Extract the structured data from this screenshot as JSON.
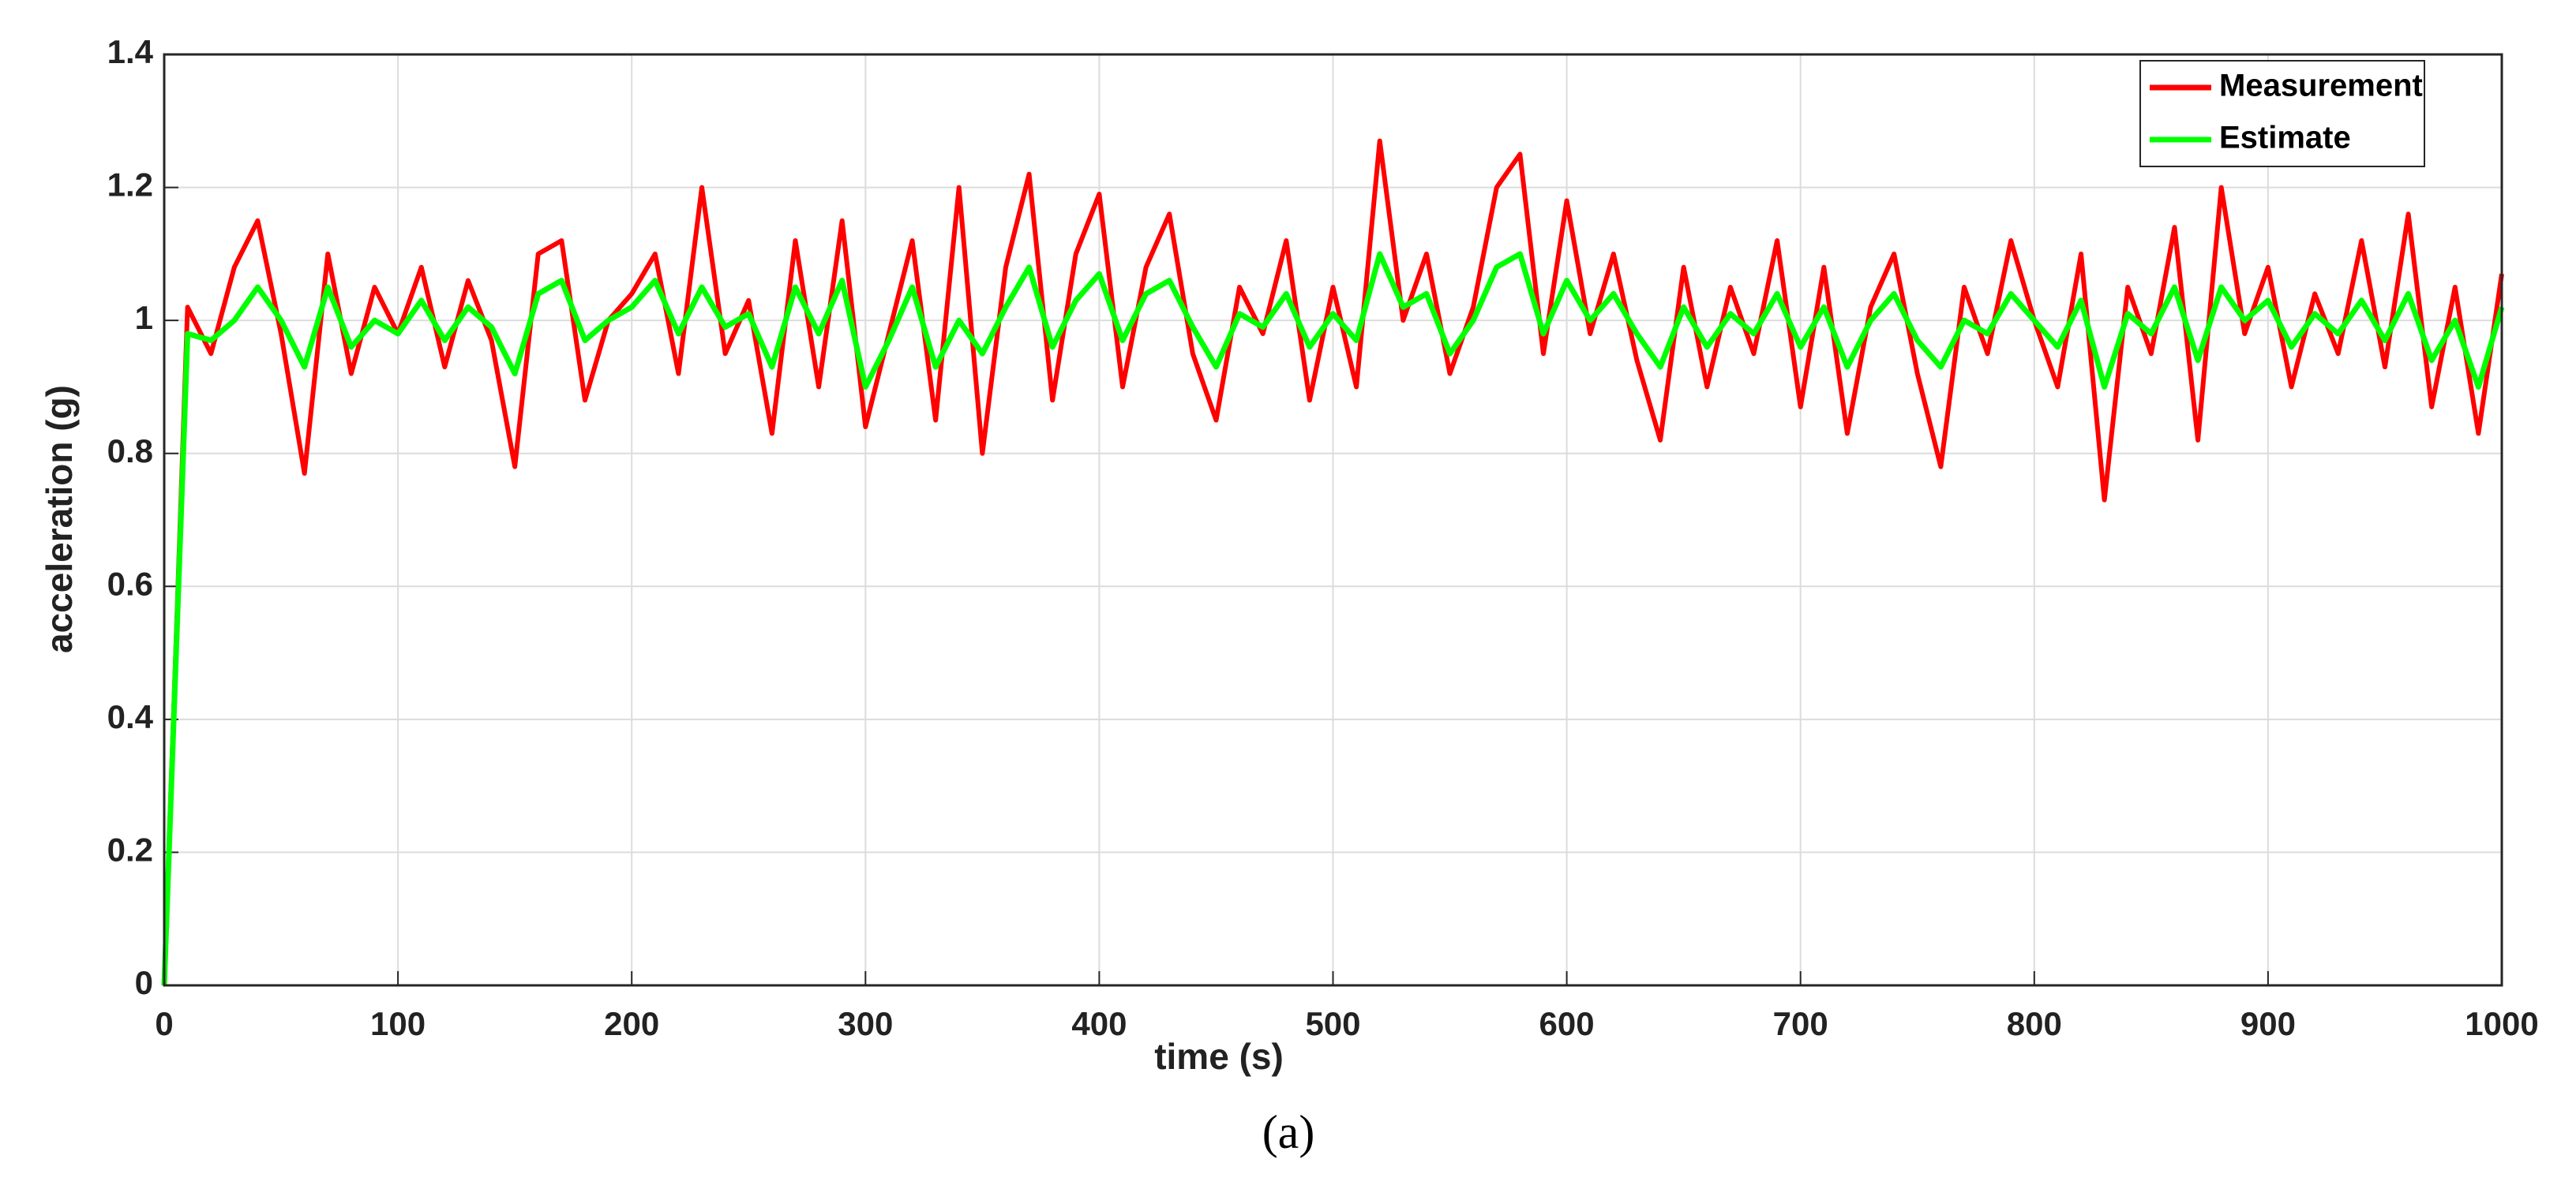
{
  "chart_data": {
    "type": "line",
    "xlabel": "time (s)",
    "ylabel": "acceleration (g)",
    "caption": "(a)",
    "x": [
      0,
      10,
      20,
      30,
      40,
      50,
      60,
      70,
      80,
      90,
      100,
      110,
      120,
      130,
      140,
      150,
      160,
      170,
      180,
      190,
      200,
      210,
      220,
      230,
      240,
      250,
      260,
      270,
      280,
      290,
      300,
      310,
      320,
      330,
      340,
      350,
      360,
      370,
      380,
      390,
      400,
      410,
      420,
      430,
      440,
      450,
      460,
      470,
      480,
      490,
      500,
      510,
      520,
      530,
      540,
      550,
      560,
      570,
      580,
      590,
      600,
      610,
      620,
      630,
      640,
      650,
      660,
      670,
      680,
      690,
      700,
      710,
      720,
      730,
      740,
      750,
      760,
      770,
      780,
      790,
      800,
      810,
      820,
      830,
      840,
      850,
      860,
      870,
      880,
      890,
      900,
      910,
      920,
      930,
      940,
      950,
      960,
      970,
      980,
      990,
      1000
    ],
    "series": [
      {
        "name": "Measurement",
        "color": "#ff0000",
        "values": [
          0,
          1.02,
          0.95,
          1.08,
          1.15,
          0.98,
          0.77,
          1.1,
          0.92,
          1.05,
          0.98,
          1.08,
          0.93,
          1.06,
          0.97,
          0.78,
          1.1,
          1.12,
          0.88,
          1.0,
          1.04,
          1.1,
          0.92,
          1.2,
          0.95,
          1.03,
          0.83,
          1.12,
          0.9,
          1.15,
          0.84,
          0.98,
          1.12,
          0.85,
          1.2,
          0.8,
          1.08,
          1.22,
          0.88,
          1.1,
          1.19,
          0.9,
          1.08,
          1.16,
          0.95,
          0.85,
          1.05,
          0.98,
          1.12,
          0.88,
          1.05,
          0.9,
          1.27,
          1.0,
          1.1,
          0.92,
          1.02,
          1.2,
          1.25,
          0.95,
          1.18,
          0.98,
          1.1,
          0.94,
          0.82,
          1.08,
          0.9,
          1.05,
          0.95,
          1.12,
          0.87,
          1.08,
          0.83,
          1.02,
          1.1,
          0.92,
          0.78,
          1.05,
          0.95,
          1.12,
          1.0,
          0.9,
          1.1,
          0.73,
          1.05,
          0.95,
          1.14,
          0.82,
          1.2,
          0.98,
          1.08,
          0.9,
          1.04,
          0.95,
          1.12,
          0.93,
          1.16,
          0.87,
          1.05,
          0.83,
          1.07
        ]
      },
      {
        "name": "Estimate",
        "color": "#00ff00",
        "values": [
          0,
          0.98,
          0.97,
          1.0,
          1.05,
          1.0,
          0.93,
          1.05,
          0.96,
          1.0,
          0.98,
          1.03,
          0.97,
          1.02,
          0.99,
          0.92,
          1.04,
          1.06,
          0.97,
          1.0,
          1.02,
          1.06,
          0.98,
          1.05,
          0.99,
          1.01,
          0.93,
          1.05,
          0.98,
          1.06,
          0.9,
          0.97,
          1.05,
          0.93,
          1.0,
          0.95,
          1.02,
          1.08,
          0.96,
          1.03,
          1.07,
          0.97,
          1.04,
          1.06,
          0.99,
          0.93,
          1.01,
          0.99,
          1.04,
          0.96,
          1.01,
          0.97,
          1.1,
          1.02,
          1.04,
          0.95,
          1.0,
          1.08,
          1.1,
          0.98,
          1.06,
          1.0,
          1.04,
          0.98,
          0.93,
          1.02,
          0.96,
          1.01,
          0.98,
          1.04,
          0.96,
          1.02,
          0.93,
          1.0,
          1.04,
          0.97,
          0.93,
          1.0,
          0.98,
          1.04,
          1.0,
          0.96,
          1.03,
          0.9,
          1.01,
          0.98,
          1.05,
          0.94,
          1.05,
          1.0,
          1.03,
          0.96,
          1.01,
          0.98,
          1.03,
          0.97,
          1.04,
          0.94,
          1.0,
          0.9,
          1.02
        ]
      }
    ],
    "xlim": [
      0,
      1000
    ],
    "xticks": [
      0,
      100,
      200,
      300,
      400,
      500,
      600,
      700,
      800,
      900,
      1000
    ],
    "ylim": [
      0,
      1.4
    ],
    "yticks": [
      0,
      0.2,
      0.4,
      0.6,
      0.8,
      1,
      1.2,
      1.4
    ],
    "grid": true,
    "legend": "upper right"
  }
}
